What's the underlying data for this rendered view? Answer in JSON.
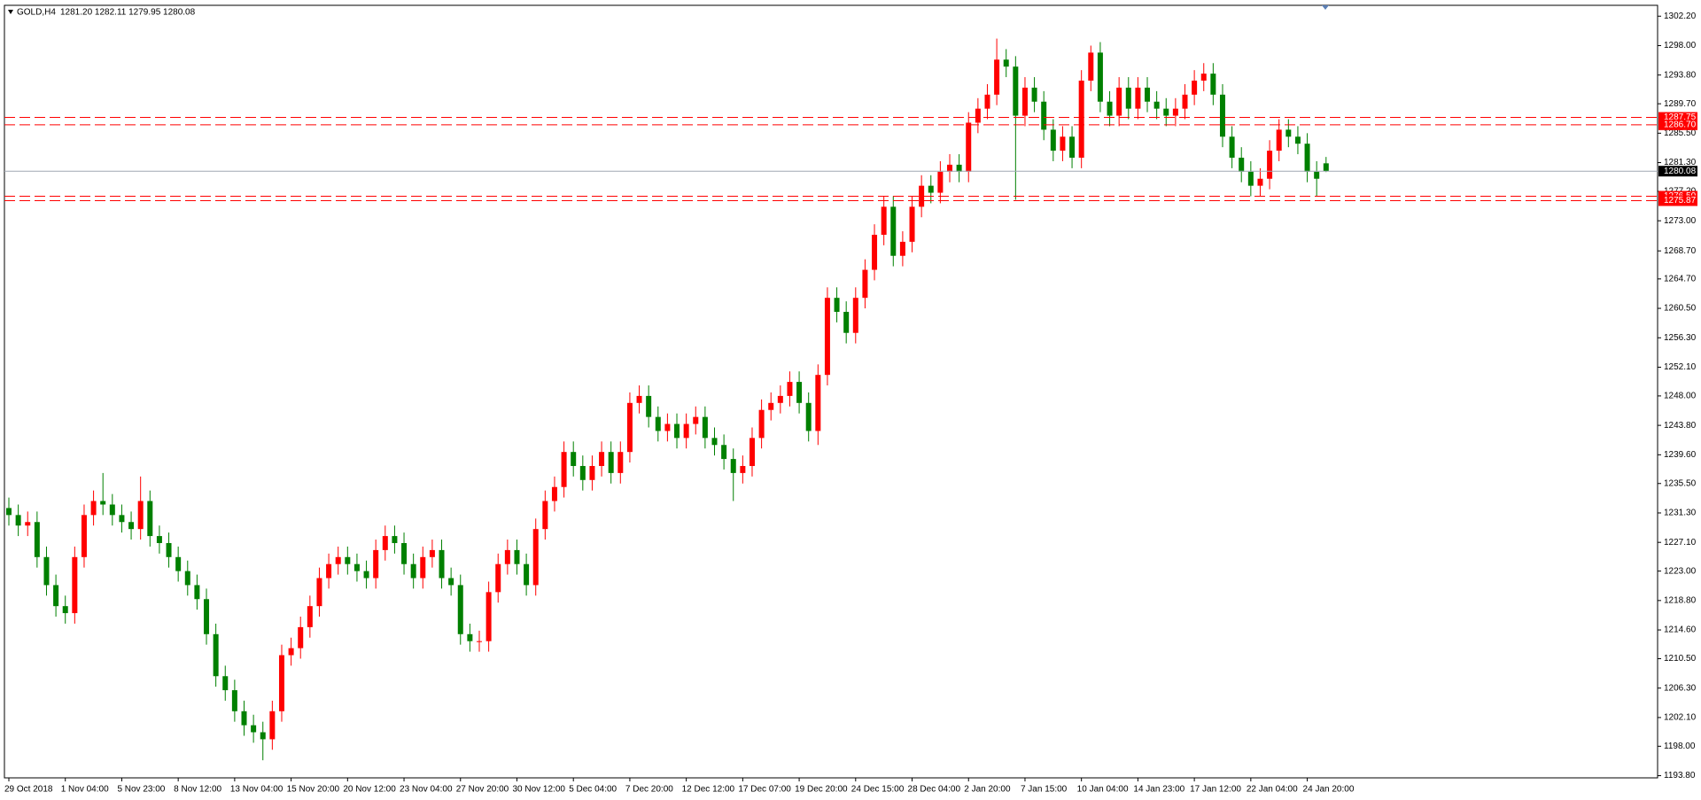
{
  "chart_data": {
    "type": "candlestick",
    "symbol": "GOLD,H4",
    "header": "1281.20 1282.11 1279.95 1280.08",
    "up_color": "#ff0000",
    "down_color": "#008000",
    "level_color": "#ff0000",
    "price_line_color": "#a0a8b4",
    "ylim": [
      1193.49,
      1303.75
    ],
    "yticks": [
      {
        "value": 1302.2,
        "label": "1302.20"
      },
      {
        "value": 1298,
        "label": "1298.00"
      },
      {
        "value": 1293.8,
        "label": "1293.80"
      },
      {
        "value": 1289.7,
        "label": "1289.70"
      },
      {
        "value": 1285.5,
        "label": "1285.50"
      },
      {
        "value": 1281.3,
        "label": "1281.30"
      },
      {
        "value": 1277.2,
        "label": "1277.20"
      },
      {
        "value": 1273,
        "label": "1273.00"
      },
      {
        "value": 1268.7,
        "label": "1268.70"
      },
      {
        "value": 1264.7,
        "label": "1264.70"
      },
      {
        "value": 1260.5,
        "label": "1260.50"
      },
      {
        "value": 1256.3,
        "label": "1256.30"
      },
      {
        "value": 1252.1,
        "label": "1252.10"
      },
      {
        "value": 1248,
        "label": "1248.00"
      },
      {
        "value": 1243.8,
        "label": "1243.80"
      },
      {
        "value": 1239.6,
        "label": "1239.60"
      },
      {
        "value": 1235.5,
        "label": "1235.50"
      },
      {
        "value": 1231.3,
        "label": "1231.30"
      },
      {
        "value": 1227.1,
        "label": "1227.10"
      },
      {
        "value": 1223,
        "label": "1223.00"
      },
      {
        "value": 1218.8,
        "label": "1218.80"
      },
      {
        "value": 1214.6,
        "label": "1214.60"
      },
      {
        "value": 1210.5,
        "label": "1210.50"
      },
      {
        "value": 1206.3,
        "label": "1206.30"
      },
      {
        "value": 1202.1,
        "label": "1202.10"
      },
      {
        "value": 1198,
        "label": "1198.00"
      },
      {
        "value": 1193.8,
        "label": "1193.80"
      }
    ],
    "levels": [
      {
        "value": 1287.75,
        "label": "1287.75"
      },
      {
        "value": 1286.7,
        "label": "1286.70"
      },
      {
        "value": 1276.5,
        "label": "1276.50"
      },
      {
        "value": 1275.87,
        "label": "1275.87"
      }
    ],
    "price_line": {
      "value": 1280.08,
      "label": "1280.08"
    },
    "categories": [
      "29 Oct 2018",
      null,
      null,
      null,
      null,
      null,
      "1 Nov 04:00",
      null,
      null,
      null,
      null,
      null,
      "5 Nov 23:00",
      null,
      null,
      null,
      null,
      null,
      "8 Nov 12:00",
      null,
      null,
      null,
      null,
      null,
      "13 Nov 04:00",
      null,
      null,
      null,
      null,
      null,
      "15 Nov 20:00",
      null,
      null,
      null,
      null,
      null,
      "20 Nov 12:00",
      null,
      null,
      null,
      null,
      null,
      "23 Nov 04:00",
      null,
      null,
      null,
      null,
      null,
      "27 Nov 20:00",
      null,
      null,
      null,
      null,
      null,
      "30 Nov 12:00",
      null,
      null,
      null,
      null,
      null,
      "5 Dec 04:00",
      null,
      null,
      null,
      null,
      null,
      "7 Dec 20:00",
      null,
      null,
      null,
      null,
      null,
      "12 Dec 12:00",
      null,
      null,
      null,
      null,
      null,
      "17 Dec 07:00",
      null,
      null,
      null,
      null,
      null,
      "19 Dec 20:00",
      null,
      null,
      null,
      null,
      null,
      "24 Dec 15:00",
      null,
      null,
      null,
      null,
      null,
      "28 Dec 04:00",
      null,
      null,
      null,
      null,
      null,
      "2 Jan 20:00",
      null,
      null,
      null,
      null,
      null,
      "7 Jan 15:00",
      null,
      null,
      null,
      null,
      null,
      "10 Jan 04:00",
      null,
      null,
      null,
      null,
      null,
      "14 Jan 23:00",
      null,
      null,
      null,
      null,
      null,
      "17 Jan 12:00",
      null,
      null,
      null,
      null,
      null,
      "22 Jan 04:00",
      null,
      null,
      null,
      null,
      null,
      "24 Jan 20:00",
      null,
      null
    ],
    "open": [
      1232,
      1231,
      1229.5,
      1230,
      1225,
      1221,
      1218,
      1217,
      1225,
      1231,
      1233,
      1232.5,
      1231,
      1230,
      1229,
      1233,
      1228,
      1227,
      1225,
      1223,
      1221,
      1219,
      1214,
      1208,
      1206,
      1203,
      1201,
      1200,
      1199,
      1203,
      1211,
      1212,
      1215,
      1218,
      1222,
      1224,
      1225,
      1224,
      1223,
      1222,
      1226,
      1228,
      1227,
      1224,
      1222,
      1225,
      1226,
      1222,
      1221,
      1214,
      1213,
      1213,
      1220,
      1224,
      1226,
      1224,
      1221,
      1229,
      1233,
      1235,
      1240,
      1238,
      1236,
      1238,
      1240,
      1237,
      1240,
      1247,
      1248,
      1245,
      1243,
      1244,
      1242,
      1244,
      1245,
      1242,
      1241,
      1239,
      1237,
      1238,
      1242,
      1246,
      1247,
      1248,
      1250,
      1247,
      1243,
      1251,
      1262,
      1260,
      1257,
      1262,
      1266,
      1271,
      1275,
      1268,
      1270,
      1275,
      1278,
      1277,
      1280,
      1281,
      1280,
      1287,
      1289,
      1291,
      1296,
      1295,
      1288,
      1292,
      1290,
      1286,
      1283,
      1285,
      1282,
      1293,
      1297,
      1290,
      1288,
      1292,
      1289,
      1292,
      1290,
      1289,
      1288,
      1289,
      1291,
      1293,
      1294,
      1291,
      1285,
      1282,
      1280,
      1278,
      1279,
      1283,
      1286,
      1285,
      1284,
      1280,
      1281.2
    ],
    "high": [
      1233.5,
      1232.5,
      1231.5,
      1231.5,
      1226.5,
      1222.5,
      1219.5,
      1226.5,
      1232.5,
      1234.5,
      1237,
      1234,
      1232.5,
      1231.5,
      1236.5,
      1234.5,
      1229.5,
      1228.5,
      1226.5,
      1224.5,
      1222.5,
      1220.5,
      1215.5,
      1209.5,
      1207.5,
      1204.5,
      1202.5,
      1201.5,
      1204.5,
      1212.5,
      1213.5,
      1216.5,
      1219.5,
      1223.5,
      1225.5,
      1226.5,
      1226.5,
      1225.5,
      1224.5,
      1227.5,
      1229.5,
      1229.5,
      1228.5,
      1225.5,
      1226.5,
      1227.5,
      1227.5,
      1223.5,
      1222.5,
      1215.5,
      1214.5,
      1221.5,
      1225.5,
      1227.5,
      1227.5,
      1225.5,
      1230.5,
      1234.5,
      1236.5,
      1241.5,
      1241.5,
      1239.5,
      1239.5,
      1241.5,
      1241.5,
      1241.5,
      1248.5,
      1249.5,
      1249.5,
      1246.5,
      1245.5,
      1245.5,
      1245.5,
      1246.5,
      1246.5,
      1243.5,
      1242.5,
      1240.5,
      1239.5,
      1243.5,
      1247.5,
      1248.5,
      1249.5,
      1251.5,
      1251.5,
      1248.5,
      1252.5,
      1263.5,
      1263.5,
      1261.5,
      1263.5,
      1267.5,
      1272.5,
      1276.5,
      1276.5,
      1271.5,
      1276.5,
      1279.5,
      1279.5,
      1281.5,
      1282.5,
      1282.5,
      1288.5,
      1290.5,
      1292.5,
      1299,
      1297.5,
      1296.5,
      1293.5,
      1293.5,
      1291.5,
      1287.5,
      1286.5,
      1286.5,
      1294.5,
      1298,
      1298.5,
      1291.5,
      1293.5,
      1293.5,
      1293.5,
      1293.5,
      1291.5,
      1290.5,
      1290.5,
      1292.5,
      1294.5,
      1295.5,
      1295.5,
      1292.5,
      1286.5,
      1283.5,
      1281.5,
      1280.5,
      1284.5,
      1287.5,
      1287.5,
      1286.5,
      1285.5,
      1281.5,
      1282.11
    ],
    "low": [
      1229.5,
      1228,
      1228,
      1223.5,
      1219.5,
      1216.5,
      1215.5,
      1215.5,
      1223.5,
      1229.5,
      1231,
      1229.5,
      1228.5,
      1227.5,
      1227.5,
      1226.5,
      1225.5,
      1223.5,
      1221.5,
      1219.5,
      1217.5,
      1212.5,
      1206.5,
      1204.5,
      1201.5,
      1199.5,
      1198.5,
      1196,
      1197.5,
      1201.5,
      1209.5,
      1210.5,
      1213.5,
      1216.5,
      1220.5,
      1222.5,
      1222.5,
      1221.5,
      1220.5,
      1220.5,
      1224.5,
      1225.5,
      1222.5,
      1220.5,
      1220.5,
      1223.5,
      1220.5,
      1219.5,
      1212.5,
      1211.5,
      1211.5,
      1211.5,
      1218.5,
      1222.5,
      1222.5,
      1219.5,
      1219.5,
      1227.5,
      1231.5,
      1233.5,
      1236.5,
      1234.5,
      1234.5,
      1236.5,
      1235.5,
      1235.5,
      1238.5,
      1245.5,
      1243.5,
      1241.5,
      1241.5,
      1240.5,
      1240.5,
      1242.5,
      1240.5,
      1239.5,
      1237.5,
      1233,
      1235.5,
      1236.5,
      1240.5,
      1244.5,
      1245.5,
      1246.5,
      1245.5,
      1241.5,
      1241,
      1249.5,
      1258.5,
      1255.5,
      1255.5,
      1260.5,
      1264.5,
      1269.5,
      1266.5,
      1266.5,
      1268.5,
      1273.5,
      1275.5,
      1275.5,
      1278.5,
      1278.5,
      1278.5,
      1285.5,
      1287.5,
      1289.5,
      1293.5,
      1276,
      1286.5,
      1288.5,
      1284.5,
      1281.5,
      1281.5,
      1280.5,
      1280.5,
      1291.5,
      1288.5,
      1286.5,
      1286.5,
      1287.5,
      1287.5,
      1288.5,
      1287.5,
      1286.5,
      1286.5,
      1287.5,
      1289.5,
      1291.5,
      1289.5,
      1283.5,
      1280.5,
      1278.5,
      1276.5,
      1276.5,
      1277.5,
      1281.5,
      1283.5,
      1282.5,
      1278.5,
      1276.5,
      1279.95
    ],
    "close": [
      1231,
      1229.5,
      1230,
      1225,
      1221,
      1218,
      1217,
      1225,
      1231,
      1233,
      1232.5,
      1231,
      1230,
      1229,
      1233,
      1228,
      1227,
      1225,
      1223,
      1221,
      1219,
      1214,
      1208,
      1206,
      1203,
      1201,
      1200,
      1199,
      1203,
      1211,
      1212,
      1215,
      1218,
      1222,
      1224,
      1225,
      1224,
      1223,
      1222,
      1226,
      1228,
      1227,
      1224,
      1222,
      1225,
      1226,
      1222,
      1221,
      1214,
      1213,
      1213,
      1220,
      1224,
      1226,
      1224,
      1221,
      1229,
      1233,
      1235,
      1240,
      1238,
      1236,
      1238,
      1240,
      1237,
      1240,
      1247,
      1248,
      1245,
      1243,
      1244,
      1242,
      1244,
      1245,
      1242,
      1241,
      1239,
      1237,
      1238,
      1242,
      1246,
      1247,
      1248,
      1250,
      1247,
      1243,
      1251,
      1262,
      1260,
      1257,
      1262,
      1266,
      1271,
      1275,
      1268,
      1270,
      1275,
      1278,
      1277,
      1280,
      1281,
      1280,
      1287,
      1289,
      1291,
      1296,
      1295,
      1288,
      1292,
      1290,
      1286,
      1283,
      1285,
      1282,
      1293,
      1297,
      1290,
      1288,
      1292,
      1289,
      1292,
      1290,
      1289,
      1288,
      1289,
      1291,
      1293,
      1294,
      1291,
      1285,
      1282,
      1280,
      1278,
      1279,
      1283,
      1286,
      1285,
      1284,
      1280,
      1279,
      1280.08
    ]
  }
}
